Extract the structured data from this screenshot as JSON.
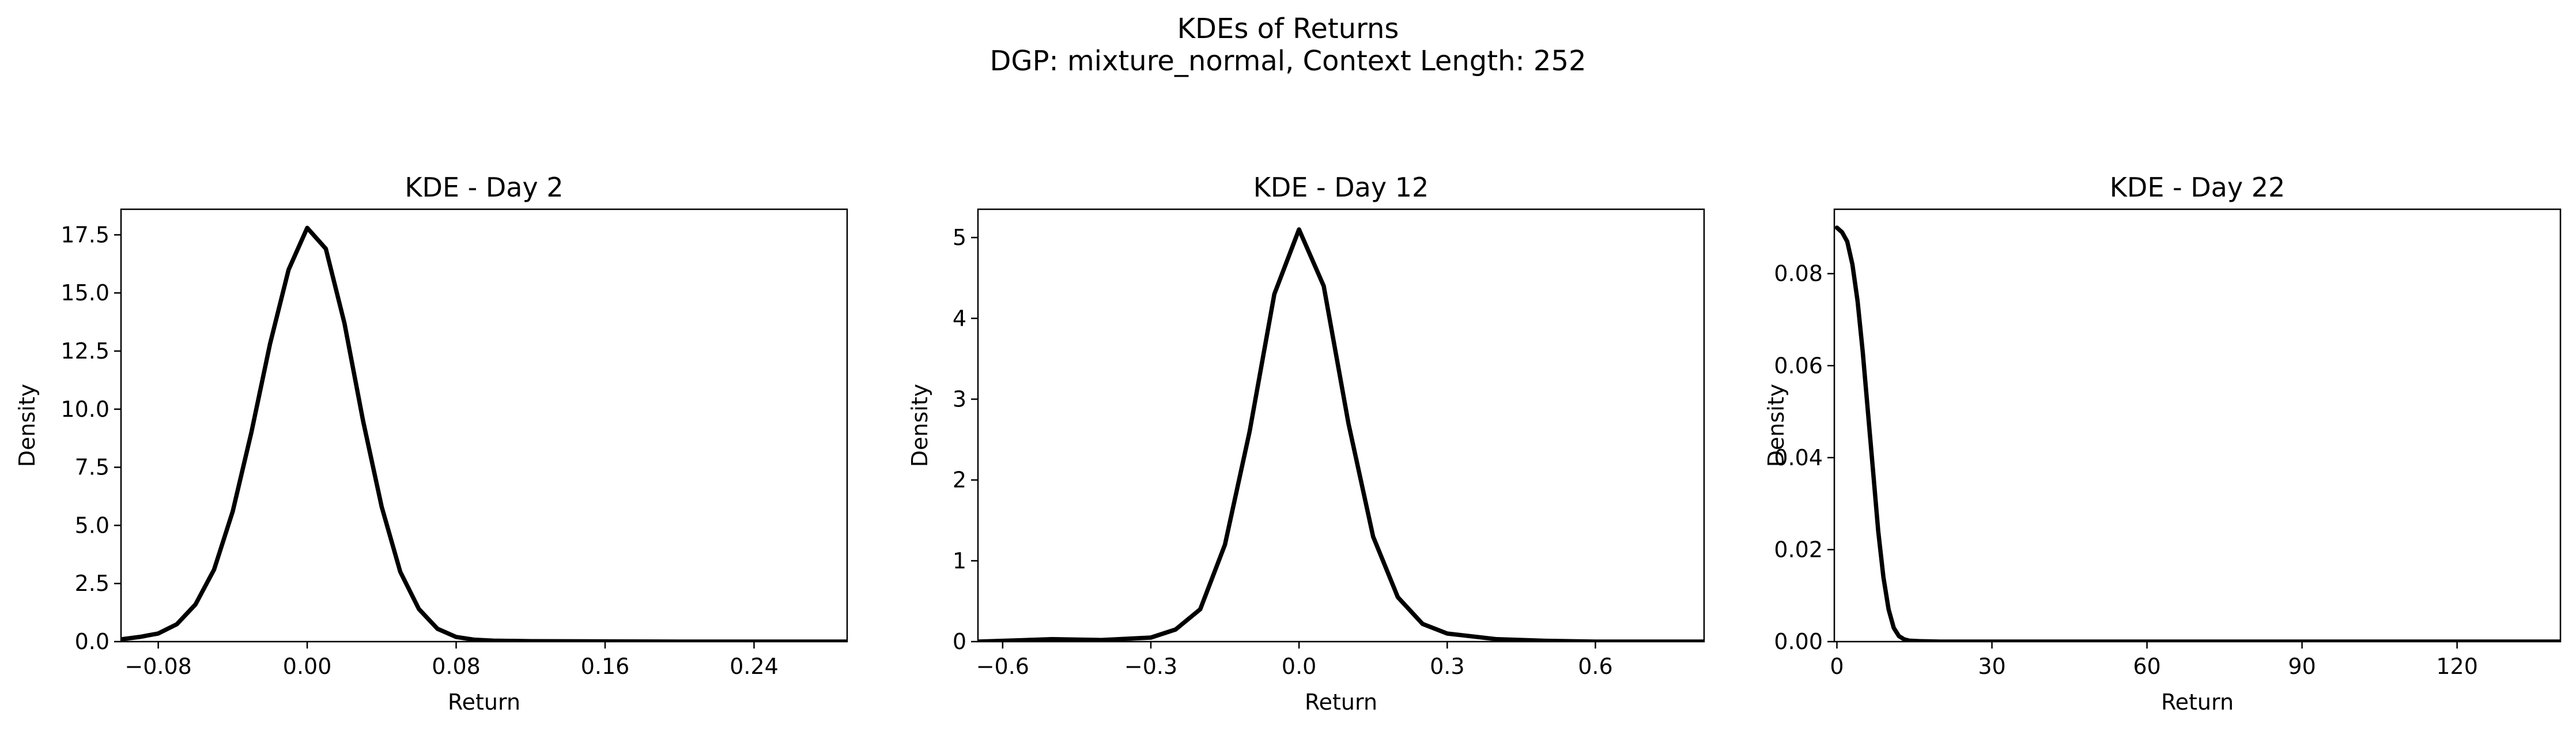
{
  "figure": {
    "title": "KDEs of Returns",
    "subtitle": "DGP: mixture_normal, Context Length: 252"
  },
  "chart_data": [
    {
      "type": "line",
      "title": "KDE - Day 2",
      "xlabel": "Return",
      "ylabel": "Density",
      "xlim": [
        -0.1,
        0.29
      ],
      "ylim": [
        0,
        18.6
      ],
      "xticks": [
        -0.08,
        0.0,
        0.08,
        0.16,
        0.24
      ],
      "xtick_labels": [
        "−0.08",
        "0.00",
        "0.08",
        "0.16",
        "0.24"
      ],
      "yticks": [
        0,
        2.5,
        5,
        7.5,
        10,
        12.5,
        15,
        17.5
      ],
      "ytick_labels": [
        "0.0",
        "2.5",
        "5.0",
        "7.5",
        "10.0",
        "12.5",
        "15.0",
        "17.5"
      ],
      "grid": false,
      "series": [
        {
          "color": "#000000",
          "x": [
            -0.1,
            -0.09,
            -0.08,
            -0.07,
            -0.06,
            -0.05,
            -0.04,
            -0.03,
            -0.02,
            -0.01,
            0.0,
            0.01,
            0.02,
            0.03,
            0.04,
            0.05,
            0.06,
            0.07,
            0.08,
            0.09,
            0.1,
            0.12,
            0.16,
            0.2,
            0.24,
            0.29
          ],
          "y": [
            0.1,
            0.2,
            0.35,
            0.75,
            1.6,
            3.1,
            5.6,
            9.0,
            12.8,
            16.0,
            17.8,
            16.9,
            13.7,
            9.5,
            5.8,
            3.0,
            1.4,
            0.55,
            0.2,
            0.08,
            0.04,
            0.02,
            0.01,
            0.0,
            0.0,
            0.0
          ]
        }
      ]
    },
    {
      "type": "line",
      "title": "KDE - Day 12",
      "xlabel": "Return",
      "ylabel": "Density",
      "xlim": [
        -0.65,
        0.82
      ],
      "ylim": [
        0,
        5.35
      ],
      "xticks": [
        -0.6,
        -0.3,
        0.0,
        0.3,
        0.6
      ],
      "xtick_labels": [
        "−0.6",
        "−0.3",
        "0.0",
        "0.3",
        "0.6"
      ],
      "yticks": [
        0,
        1,
        2,
        3,
        4,
        5
      ],
      "ytick_labels": [
        "0",
        "1",
        "2",
        "3",
        "4",
        "5"
      ],
      "grid": false,
      "series": [
        {
          "color": "#000000",
          "x": [
            -0.65,
            -0.5,
            -0.4,
            -0.3,
            -0.25,
            -0.2,
            -0.15,
            -0.1,
            -0.05,
            0.0,
            0.05,
            0.1,
            0.15,
            0.2,
            0.25,
            0.3,
            0.4,
            0.5,
            0.6,
            0.7,
            0.82
          ],
          "y": [
            0.0,
            0.03,
            0.02,
            0.05,
            0.15,
            0.4,
            1.2,
            2.6,
            4.3,
            5.1,
            4.4,
            2.7,
            1.3,
            0.55,
            0.22,
            0.1,
            0.03,
            0.01,
            0.0,
            0.0,
            0.0
          ]
        }
      ]
    },
    {
      "type": "line",
      "title": "KDE - Day 22",
      "xlabel": "Return",
      "ylabel": "Density",
      "xlim": [
        -0.5,
        140
      ],
      "ylim": [
        0,
        0.094
      ],
      "xticks": [
        0,
        30,
        60,
        90,
        120
      ],
      "xtick_labels": [
        "0",
        "30",
        "60",
        "90",
        "120"
      ],
      "yticks": [
        0,
        0.02,
        0.04,
        0.06,
        0.08
      ],
      "ytick_labels": [
        "0.00",
        "0.02",
        "0.04",
        "0.06",
        "0.08"
      ],
      "grid": false,
      "series": [
        {
          "color": "#000000",
          "x": [
            0,
            1,
            2,
            3,
            4,
            5,
            6,
            7,
            8,
            9,
            10,
            11,
            12,
            13,
            14,
            16,
            20,
            30,
            60,
            90,
            120,
            140
          ],
          "y": [
            0.09,
            0.089,
            0.087,
            0.082,
            0.074,
            0.063,
            0.05,
            0.037,
            0.024,
            0.014,
            0.007,
            0.003,
            0.0012,
            0.0005,
            0.0002,
            0.0001,
            0.0,
            0.0,
            0.0,
            0.0,
            0.0,
            0.0
          ]
        }
      ]
    }
  ]
}
